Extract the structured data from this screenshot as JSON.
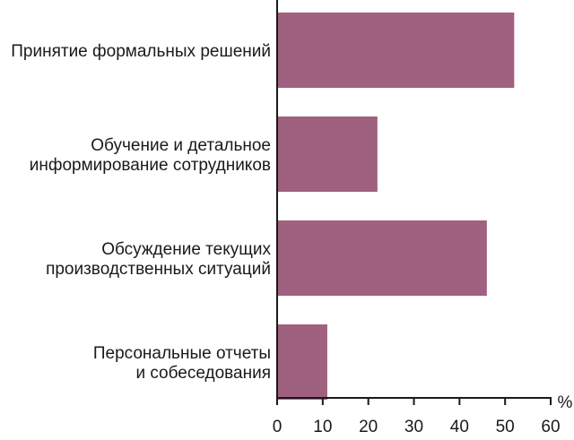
{
  "chart_data": {
    "type": "bar",
    "orientation": "horizontal",
    "categories": [
      [
        "Принятие формальных решений"
      ],
      [
        "Обучение и детальное",
        "информирование сотрудников"
      ],
      [
        "Обсуждение текущих",
        "производственных ситуаций"
      ],
      [
        "Персональные отчеты",
        "и собеседования"
      ]
    ],
    "values": [
      52,
      22,
      46,
      11
    ],
    "unit": "%",
    "xlim": [
      0,
      60
    ],
    "xticks": [
      0,
      10,
      20,
      30,
      40,
      50,
      60
    ],
    "title": "",
    "xlabel": "",
    "ylabel": "",
    "grid": false,
    "legend": "none",
    "colors": {
      "bar": "#a0607f",
      "axis": "#1a1a1a",
      "text": "#1a1a1a"
    }
  }
}
